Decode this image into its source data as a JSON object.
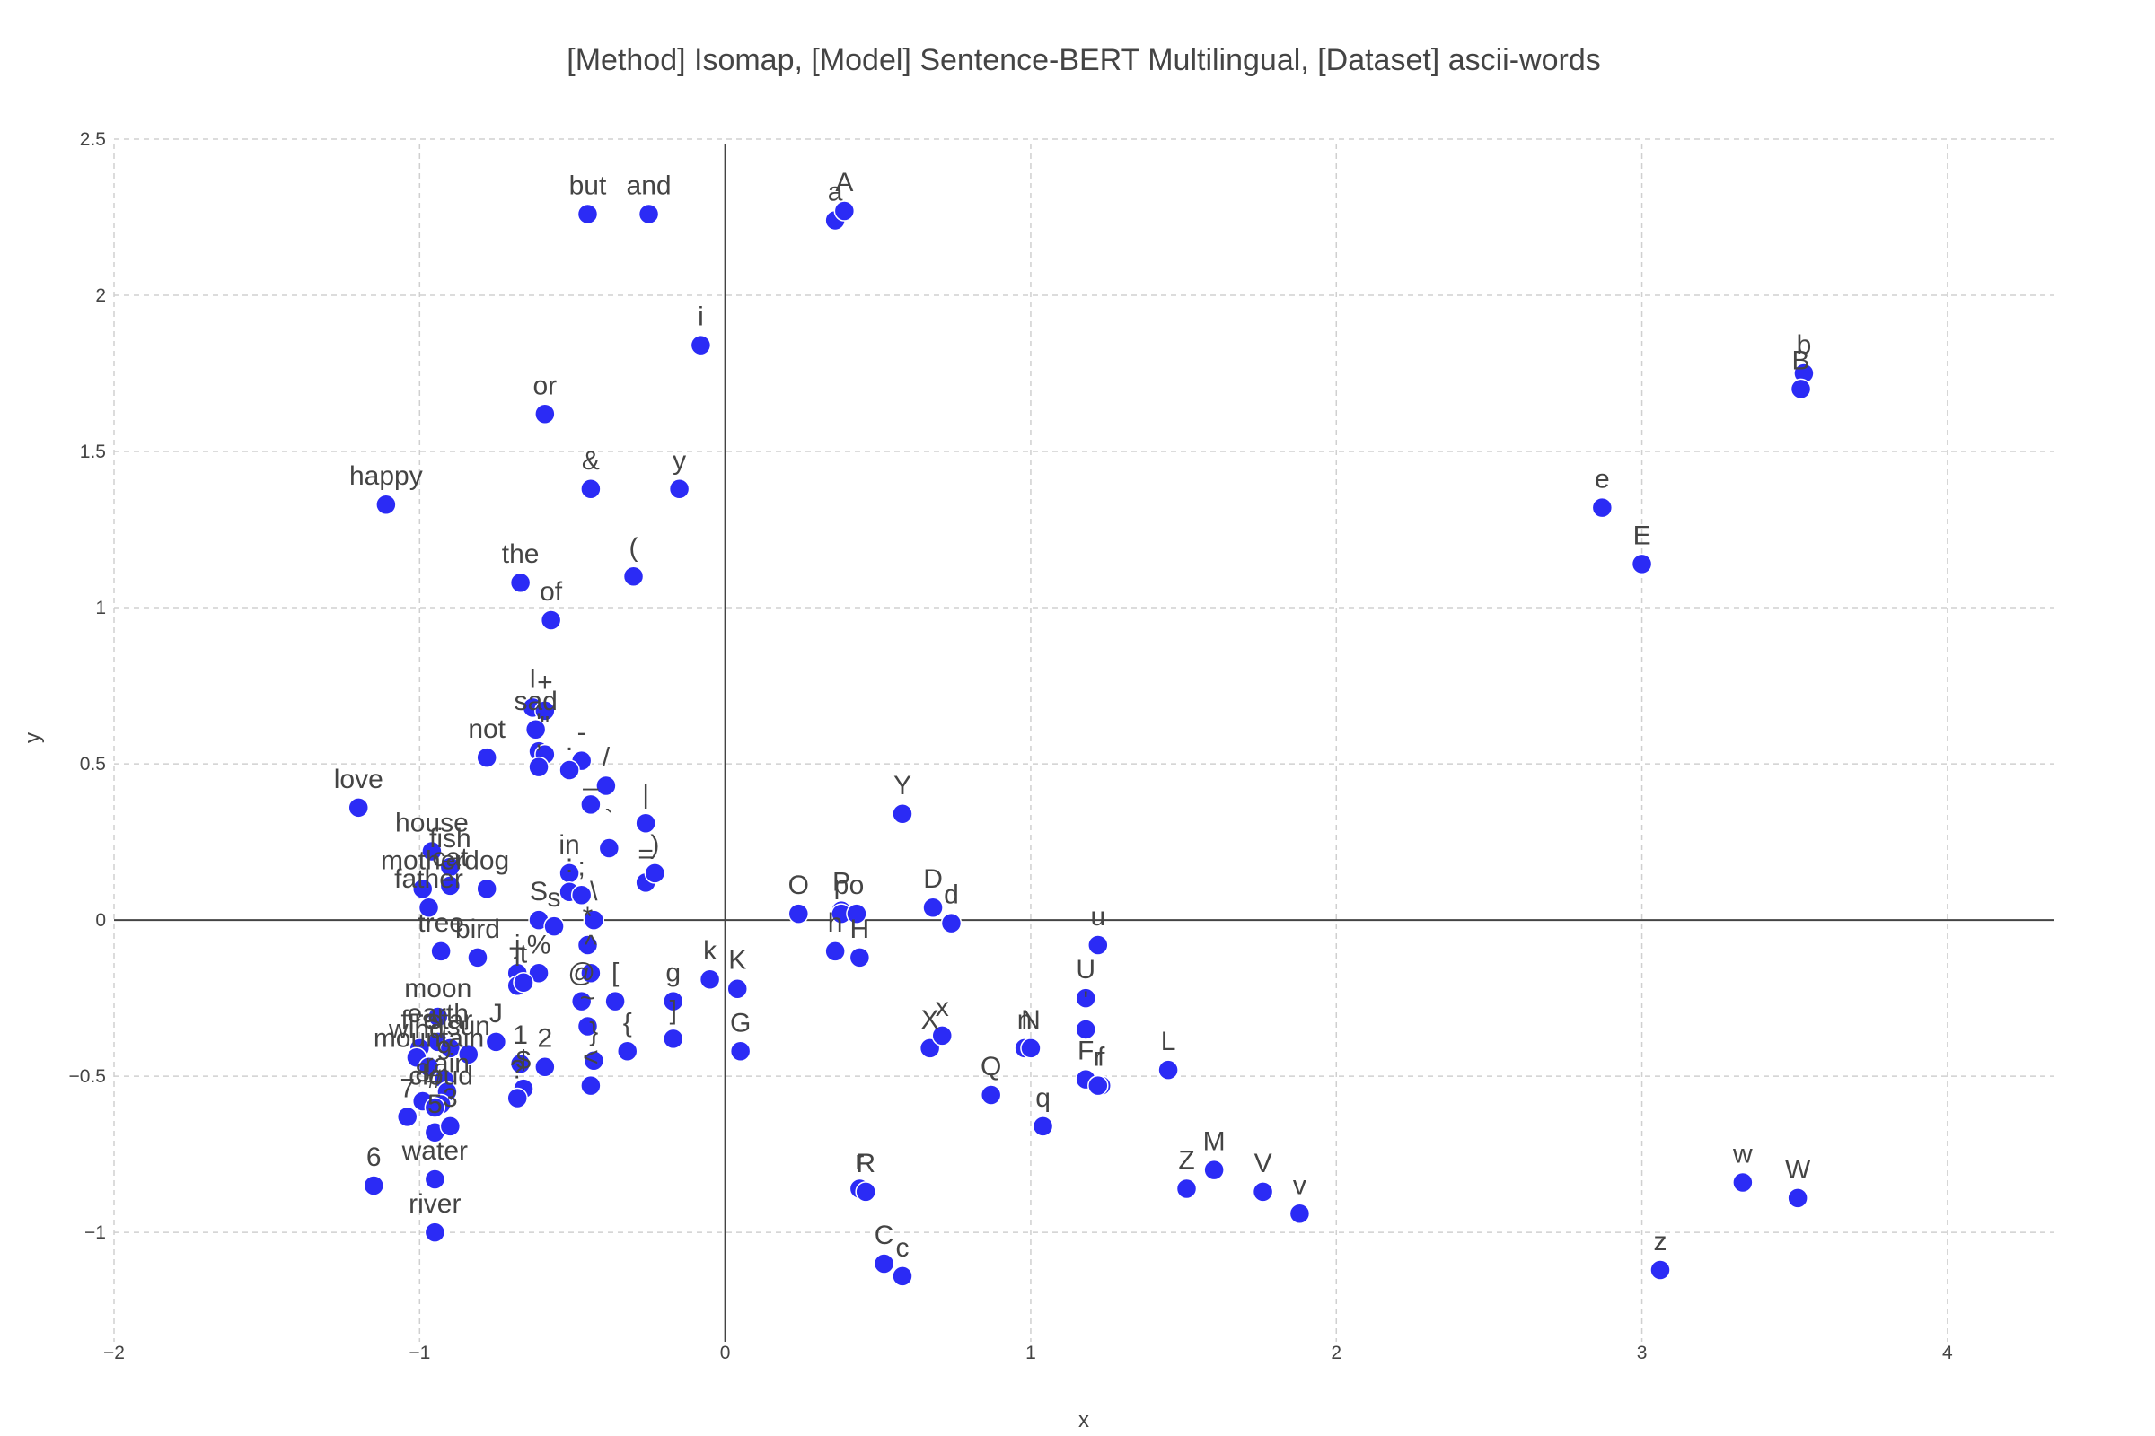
{
  "chart_data": {
    "type": "scatter",
    "title": "[Method] Isomap, [Model] Sentence-BERT Multilingual, [Dataset] ascii-words",
    "xlabel": "x",
    "ylabel": "y",
    "xlim": [
      -2,
      4.35
    ],
    "ylim": [
      -1.35,
      2.52
    ],
    "xticks": [
      -2,
      -1,
      0,
      1,
      2,
      3,
      4
    ],
    "xtick_labels": [
      "−2",
      "−1",
      "0",
      "1",
      "2",
      "3",
      "4"
    ],
    "yticks": [
      -1,
      -0.5,
      0,
      0.5,
      1,
      1.5,
      2,
      2.5
    ],
    "ytick_labels": [
      "−1",
      "−0.5",
      "0",
      "0.5",
      "1",
      "1.5",
      "2",
      "2.5"
    ],
    "grid": true,
    "marker_color": "#2b2bf5",
    "points": [
      {
        "label": "but",
        "x": -0.45,
        "y": 2.26
      },
      {
        "label": "and",
        "x": -0.25,
        "y": 2.26
      },
      {
        "label": "a",
        "x": 0.36,
        "y": 2.24
      },
      {
        "label": "A",
        "x": 0.39,
        "y": 2.27
      },
      {
        "label": "i",
        "x": -0.08,
        "y": 1.84
      },
      {
        "label": "b",
        "x": 3.53,
        "y": 1.75
      },
      {
        "label": "B",
        "x": 3.52,
        "y": 1.7
      },
      {
        "label": "or",
        "x": -0.59,
        "y": 1.62
      },
      {
        "label": "&",
        "x": -0.44,
        "y": 1.38
      },
      {
        "label": "y",
        "x": -0.15,
        "y": 1.38
      },
      {
        "label": "happy",
        "x": -1.11,
        "y": 1.33
      },
      {
        "label": "e",
        "x": 2.87,
        "y": 1.32
      },
      {
        "label": "E",
        "x": 3.0,
        "y": 1.14
      },
      {
        "label": "the",
        "x": -0.67,
        "y": 1.08
      },
      {
        "label": "(",
        "x": -0.3,
        "y": 1.1
      },
      {
        "label": "of",
        "x": -0.57,
        "y": 0.96
      },
      {
        "label": "l",
        "x": -0.63,
        "y": 0.68
      },
      {
        "label": "+",
        "x": -0.59,
        "y": 0.67
      },
      {
        "label": "sad",
        "x": -0.62,
        "y": 0.61
      },
      {
        "label": "not",
        "x": -0.78,
        "y": 0.52
      },
      {
        "label": "'",
        "x": -0.61,
        "y": 0.54
      },
      {
        "label": "-",
        "x": -0.47,
        "y": 0.51
      },
      {
        "label": "\"",
        "x": -0.59,
        "y": 0.53
      },
      {
        "label": "/",
        "x": -0.39,
        "y": 0.43
      },
      {
        "label": ",",
        "x": -0.61,
        "y": 0.49
      },
      {
        "label": ".",
        "x": -0.51,
        "y": 0.48
      },
      {
        "label": "love",
        "x": -1.2,
        "y": 0.36
      },
      {
        "label": "_",
        "x": -0.44,
        "y": 0.37
      },
      {
        "label": "`",
        "x": -0.38,
        "y": 0.23
      },
      {
        "label": "|",
        "x": -0.26,
        "y": 0.31
      },
      {
        "label": "=",
        "x": -0.26,
        "y": 0.12
      },
      {
        "label": ")",
        "x": -0.23,
        "y": 0.15
      },
      {
        "label": "house",
        "x": -0.96,
        "y": 0.22
      },
      {
        "label": "fish",
        "x": -0.9,
        "y": 0.17
      },
      {
        "label": "mother",
        "x": -0.99,
        "y": 0.1
      },
      {
        "label": "cat",
        "x": -0.9,
        "y": 0.11
      },
      {
        "label": "dog",
        "x": -0.78,
        "y": 0.1
      },
      {
        "label": "father",
        "x": -0.97,
        "y": 0.04
      },
      {
        "label": "in",
        "x": -0.51,
        "y": 0.15
      },
      {
        "label": ":",
        "x": -0.51,
        "y": 0.09
      },
      {
        "label": ";",
        "x": -0.47,
        "y": 0.08
      },
      {
        "label": "\\",
        "x": -0.43,
        "y": 0.0
      },
      {
        "label": "S",
        "x": -0.61,
        "y": 0.0
      },
      {
        "label": "s",
        "x": -0.56,
        "y": -0.02
      },
      {
        "label": "tree",
        "x": -0.93,
        "y": -0.1
      },
      {
        "label": "bird",
        "x": -0.81,
        "y": -0.12
      },
      {
        "label": "*",
        "x": -0.45,
        "y": -0.08
      },
      {
        "label": "j",
        "x": -0.68,
        "y": -0.17
      },
      {
        "label": "%",
        "x": -0.61,
        "y": -0.17
      },
      {
        "label": "T",
        "x": -0.68,
        "y": -0.21
      },
      {
        "label": "t",
        "x": -0.66,
        "y": -0.2
      },
      {
        "label": "@",
        "x": -0.47,
        "y": -0.26
      },
      {
        "label": "^",
        "x": -0.44,
        "y": -0.17
      },
      {
        "label": "[",
        "x": -0.36,
        "y": -0.26
      },
      {
        "label": "g",
        "x": -0.17,
        "y": -0.26
      },
      {
        "label": "k",
        "x": -0.05,
        "y": -0.19
      },
      {
        "label": "K",
        "x": 0.04,
        "y": -0.22
      },
      {
        "label": "O",
        "x": 0.24,
        "y": 0.02
      },
      {
        "label": "P",
        "x": 0.38,
        "y": 0.03
      },
      {
        "label": "p",
        "x": 0.38,
        "y": 0.02
      },
      {
        "label": "o",
        "x": 0.43,
        "y": 0.02
      },
      {
        "label": "Y",
        "x": 0.58,
        "y": 0.34
      },
      {
        "label": "D",
        "x": 0.68,
        "y": 0.04
      },
      {
        "label": "d",
        "x": 0.74,
        "y": -0.01
      },
      {
        "label": "h",
        "x": 0.36,
        "y": -0.1
      },
      {
        "label": "H",
        "x": 0.44,
        "y": -0.12
      },
      {
        "label": "u",
        "x": 1.22,
        "y": -0.08
      },
      {
        "label": "U",
        "x": 1.18,
        "y": -0.25
      },
      {
        "label": "'",
        "x": 1.18,
        "y": -0.35
      },
      {
        "label": "moon",
        "x": -0.94,
        "y": -0.31
      },
      {
        "label": "earth",
        "x": -0.94,
        "y": -0.39
      },
      {
        "label": "fire",
        "x": -1.0,
        "y": -0.41
      },
      {
        "label": "wind",
        "x": -1.01,
        "y": -0.44
      },
      {
        "label": "star",
        "x": -0.9,
        "y": -0.41
      },
      {
        "label": "sun",
        "x": -0.84,
        "y": -0.43
      },
      {
        "label": "mountain",
        "x": -0.97,
        "y": -0.47
      },
      {
        "label": "J",
        "x": -0.75,
        "y": -0.39
      },
      {
        "label": "1",
        "x": -0.67,
        "y": -0.46
      },
      {
        "label": "2",
        "x": -0.59,
        "y": -0.47
      },
      {
        "label": "~",
        "x": -0.45,
        "y": -0.34
      },
      {
        "label": "}",
        "x": -0.43,
        "y": -0.45
      },
      {
        "label": "{",
        "x": -0.32,
        "y": -0.42
      },
      {
        "label": "]",
        "x": -0.17,
        "y": -0.38
      },
      {
        "label": "G",
        "x": 0.05,
        "y": -0.42
      },
      {
        "label": "X",
        "x": 0.67,
        "y": -0.41
      },
      {
        "label": "x",
        "x": 0.71,
        "y": -0.37
      },
      {
        "label": "n",
        "x": 0.98,
        "y": -0.41
      },
      {
        "label": "N",
        "x": 1.0,
        "y": -0.41
      },
      {
        "label": "F",
        "x": 1.18,
        "y": -0.51
      },
      {
        "label": "f",
        "x": 1.23,
        "y": -0.53
      },
      {
        "label": "r",
        "x": 1.22,
        "y": -0.53
      },
      {
        "label": "L",
        "x": 1.45,
        "y": -0.48
      },
      {
        "label": "Q",
        "x": 0.87,
        "y": -0.56
      },
      {
        "label": "q",
        "x": 1.04,
        "y": -0.66
      },
      {
        "label": "$",
        "x": -0.66,
        "y": -0.54
      },
      {
        "label": "<",
        "x": -0.44,
        "y": -0.53
      },
      {
        "label": "9",
        "x": -0.92,
        "y": -0.51
      },
      {
        "label": "rain",
        "x": -0.91,
        "y": -0.55
      },
      {
        "label": "8",
        "x": -0.99,
        "y": -0.58
      },
      {
        "label": "cloud",
        "x": -0.93,
        "y": -0.59
      },
      {
        "label": "#",
        "x": -0.95,
        "y": -0.6
      },
      {
        "label": "?",
        "x": -0.68,
        "y": -0.57
      },
      {
        "label": "7",
        "x": -1.04,
        "y": -0.63
      },
      {
        "label": "5",
        "x": -0.95,
        "y": -0.68
      },
      {
        "label": "3",
        "x": -0.9,
        "y": -0.66
      },
      {
        "label": "6",
        "x": -1.15,
        "y": -0.85
      },
      {
        "label": "water",
        "x": -0.95,
        "y": -0.83
      },
      {
        "label": "river",
        "x": -0.95,
        "y": -1.0
      },
      {
        "label": "r",
        "x": 0.44,
        "y": -0.86
      },
      {
        "label": "R",
        "x": 0.46,
        "y": -0.87
      },
      {
        "label": "C",
        "x": 0.52,
        "y": -1.1
      },
      {
        "label": "c",
        "x": 0.58,
        "y": -1.14
      },
      {
        "label": "M",
        "x": 1.6,
        "y": -0.8
      },
      {
        "label": "Z",
        "x": 1.51,
        "y": -0.86
      },
      {
        "label": "V",
        "x": 1.76,
        "y": -0.87
      },
      {
        "label": "v",
        "x": 1.88,
        "y": -0.94
      },
      {
        "label": "w",
        "x": 3.33,
        "y": -0.84
      },
      {
        "label": "W",
        "x": 3.51,
        "y": -0.89
      },
      {
        "label": "z",
        "x": 3.06,
        "y": -1.12
      }
    ]
  }
}
